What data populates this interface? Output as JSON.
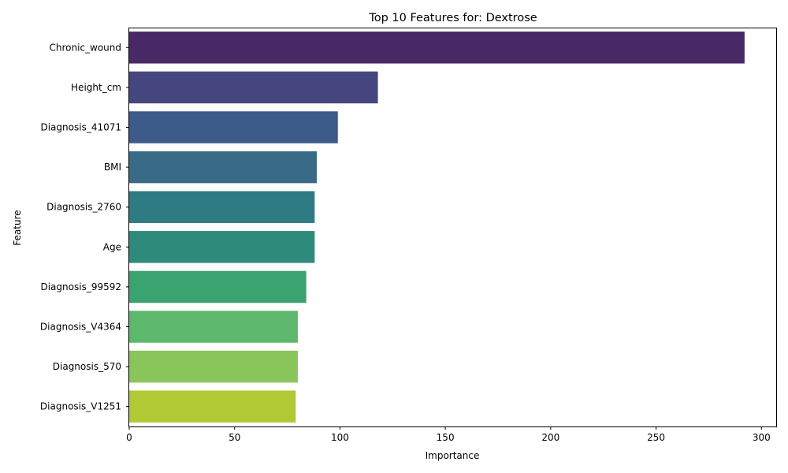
{
  "chart_data": {
    "type": "bar",
    "orientation": "horizontal",
    "title": "Top 10 Features for: Dextrose",
    "xlabel": "Importance",
    "ylabel": "Feature",
    "xlim": [
      0,
      307
    ],
    "xticks": [
      0,
      50,
      100,
      150,
      200,
      250,
      300
    ],
    "categories": [
      "Chronic_wound",
      "Height_cm",
      "Diagnosis_41071",
      "BMI",
      "Diagnosis_2760",
      "Age",
      "Diagnosis_99592",
      "Diagnosis_V4364",
      "Diagnosis_570",
      "Diagnosis_V1251"
    ],
    "values": [
      292,
      118,
      99,
      89,
      88,
      88,
      84,
      80,
      80,
      79
    ],
    "colors": [
      "#482966",
      "#46467f",
      "#3c5a8a",
      "#396b86",
      "#2e7b84",
      "#2e8b7b",
      "#3aa370",
      "#5db86d",
      "#89c55a",
      "#b1c935"
    ],
    "grid": false,
    "legend": "none"
  }
}
